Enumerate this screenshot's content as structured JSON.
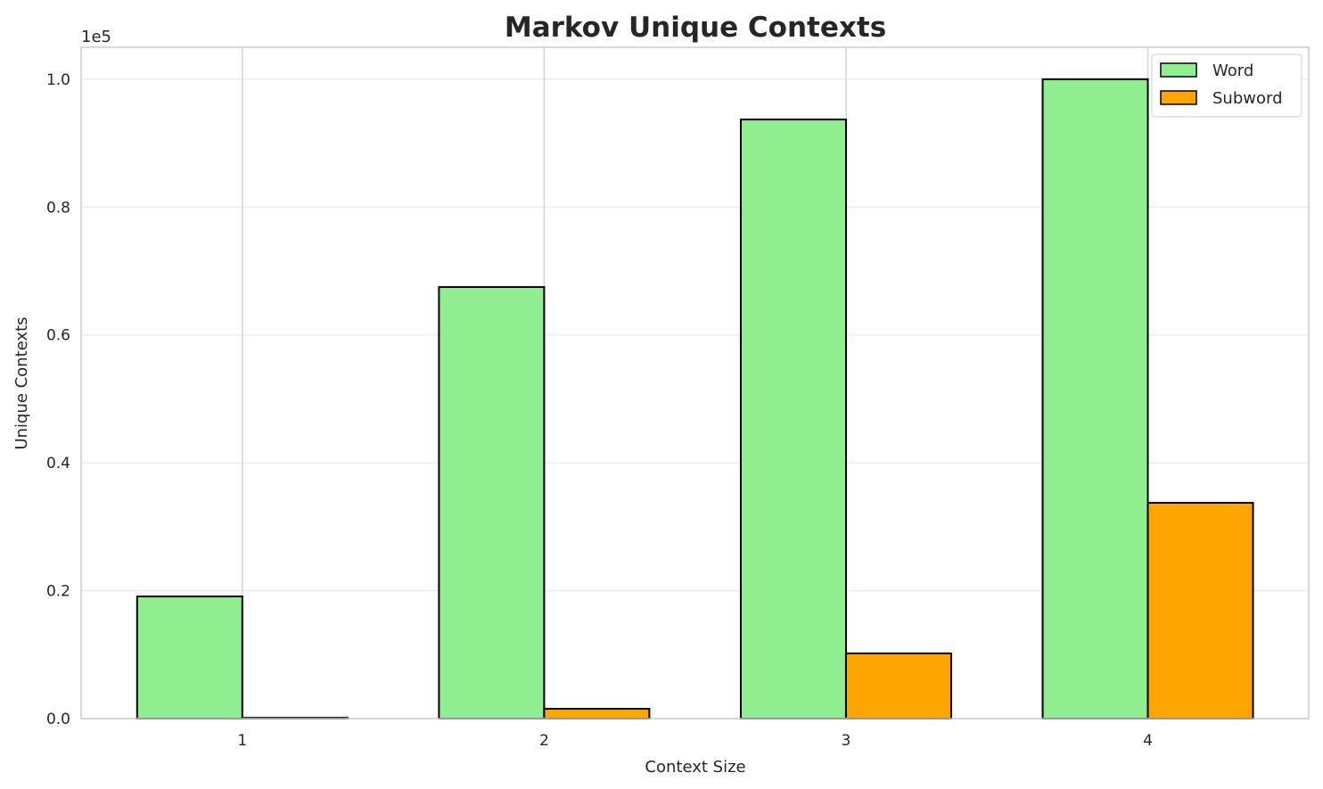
{
  "chart_data": {
    "type": "bar",
    "title": "Markov Unique Contexts",
    "xlabel": "Context Size",
    "ylabel": "Unique Contexts",
    "y_offset_label": "1e5",
    "categories": [
      "1",
      "2",
      "3",
      "4"
    ],
    "series": [
      {
        "name": "Word",
        "color": "#90EE90",
        "values": [
          19100,
          67500,
          93700,
          100000
        ]
      },
      {
        "name": "Subword",
        "color": "#FFA500",
        "values": [
          120,
          1530,
          10200,
          33750
        ]
      }
    ],
    "ylim": [
      0,
      105000
    ],
    "yticks": [
      0,
      20000,
      40000,
      60000,
      80000,
      100000
    ],
    "ytick_labels": [
      "0.0",
      "0.2",
      "0.4",
      "0.6",
      "0.8",
      "1.0"
    ],
    "grid": true,
    "legend": "top-right"
  }
}
